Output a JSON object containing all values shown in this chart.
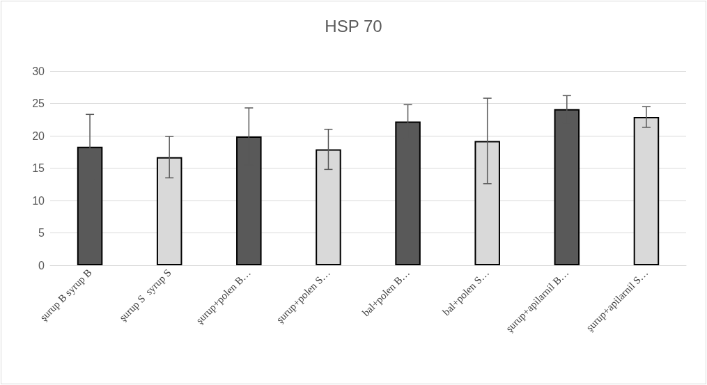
{
  "chart_data": {
    "type": "bar",
    "title": "HSP 70",
    "categories": [
      "şurup B syrup B",
      "şurup S  syrup S",
      "şurup+polen B…",
      "şurup+polen S…",
      "bal+polen B…",
      "bal+polen S…",
      "şurup+apilarnil B…",
      "şurup+apilarnil S…"
    ],
    "values": [
      18.3,
      16.7,
      19.9,
      17.9,
      22.2,
      19.2,
      24.1,
      22.9
    ],
    "errors": [
      5.0,
      3.2,
      4.4,
      3.1,
      2.6,
      6.6,
      2.1,
      1.6
    ],
    "colors": [
      "#595959",
      "#d9d9d9",
      "#595959",
      "#d9d9d9",
      "#595959",
      "#d9d9d9",
      "#595959",
      "#d9d9d9"
    ],
    "ylim": [
      0,
      30
    ],
    "yticks": [
      0,
      5,
      10,
      15,
      20,
      25,
      30
    ],
    "grid": "y"
  }
}
